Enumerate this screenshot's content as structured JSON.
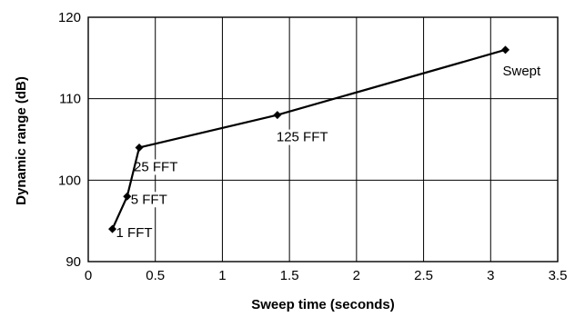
{
  "chart_data": {
    "type": "line",
    "title": "",
    "xlabel": "Sweep time (seconds)",
    "ylabel": "Dynamic range (dB)",
    "xlim": [
      0,
      3.5
    ],
    "ylim": [
      90,
      120
    ],
    "x_ticks": [
      0,
      0.5,
      1,
      1.5,
      2,
      2.5,
      3,
      3.5
    ],
    "x_tick_labels": [
      "0",
      "0.5",
      "1",
      "1.5",
      "2",
      "2.5",
      "3",
      "3.5"
    ],
    "y_ticks": [
      90,
      100,
      110,
      120
    ],
    "y_tick_labels": [
      "90",
      "100",
      "110",
      "120"
    ],
    "grid": true,
    "legend": "none",
    "line_color": "#000000",
    "marker": "diamond",
    "series": [
      {
        "points": [
          {
            "x": 0.18,
            "y": 94,
            "label": "1 FFT"
          },
          {
            "x": 0.29,
            "y": 98,
            "label": "5 FFT"
          },
          {
            "x": 0.38,
            "y": 104,
            "label": "25 FFT"
          },
          {
            "x": 1.41,
            "y": 108,
            "label": "125 FFT"
          },
          {
            "x": 3.11,
            "y": 116,
            "label": "Swept"
          }
        ]
      }
    ]
  }
}
